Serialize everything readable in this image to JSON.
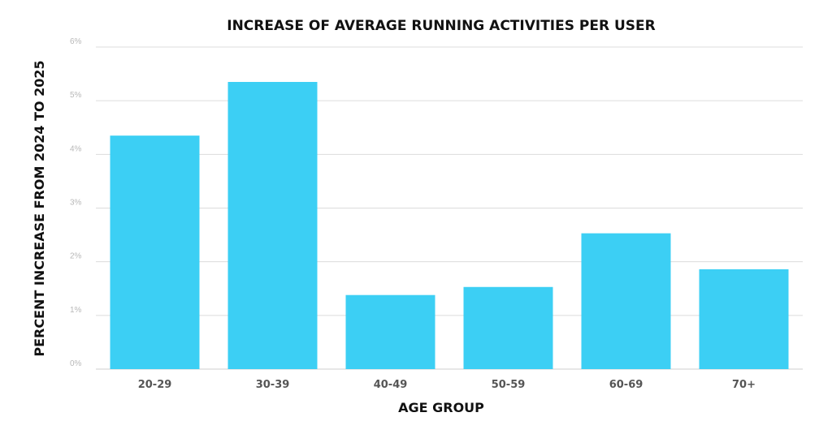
{
  "chart_data": {
    "type": "bar",
    "title": "INCREASE OF AVERAGE RUNNING ACTIVITIES PER USER",
    "xlabel": "AGE GROUP",
    "ylabel": "PERCENT INCREASE FROM 2024 TO 2025",
    "categories": [
      "20-29",
      "30-39",
      "40-49",
      "50-59",
      "60-69",
      "70+"
    ],
    "values": [
      4.35,
      5.35,
      1.38,
      1.53,
      2.53,
      1.86
    ],
    "ylim": [
      0,
      6
    ],
    "yticks": [
      "0%",
      "1%",
      "2%",
      "3%",
      "4%",
      "5%",
      "6%"
    ],
    "grid": true,
    "bar_color": "#3ccff4",
    "legend": "none"
  }
}
